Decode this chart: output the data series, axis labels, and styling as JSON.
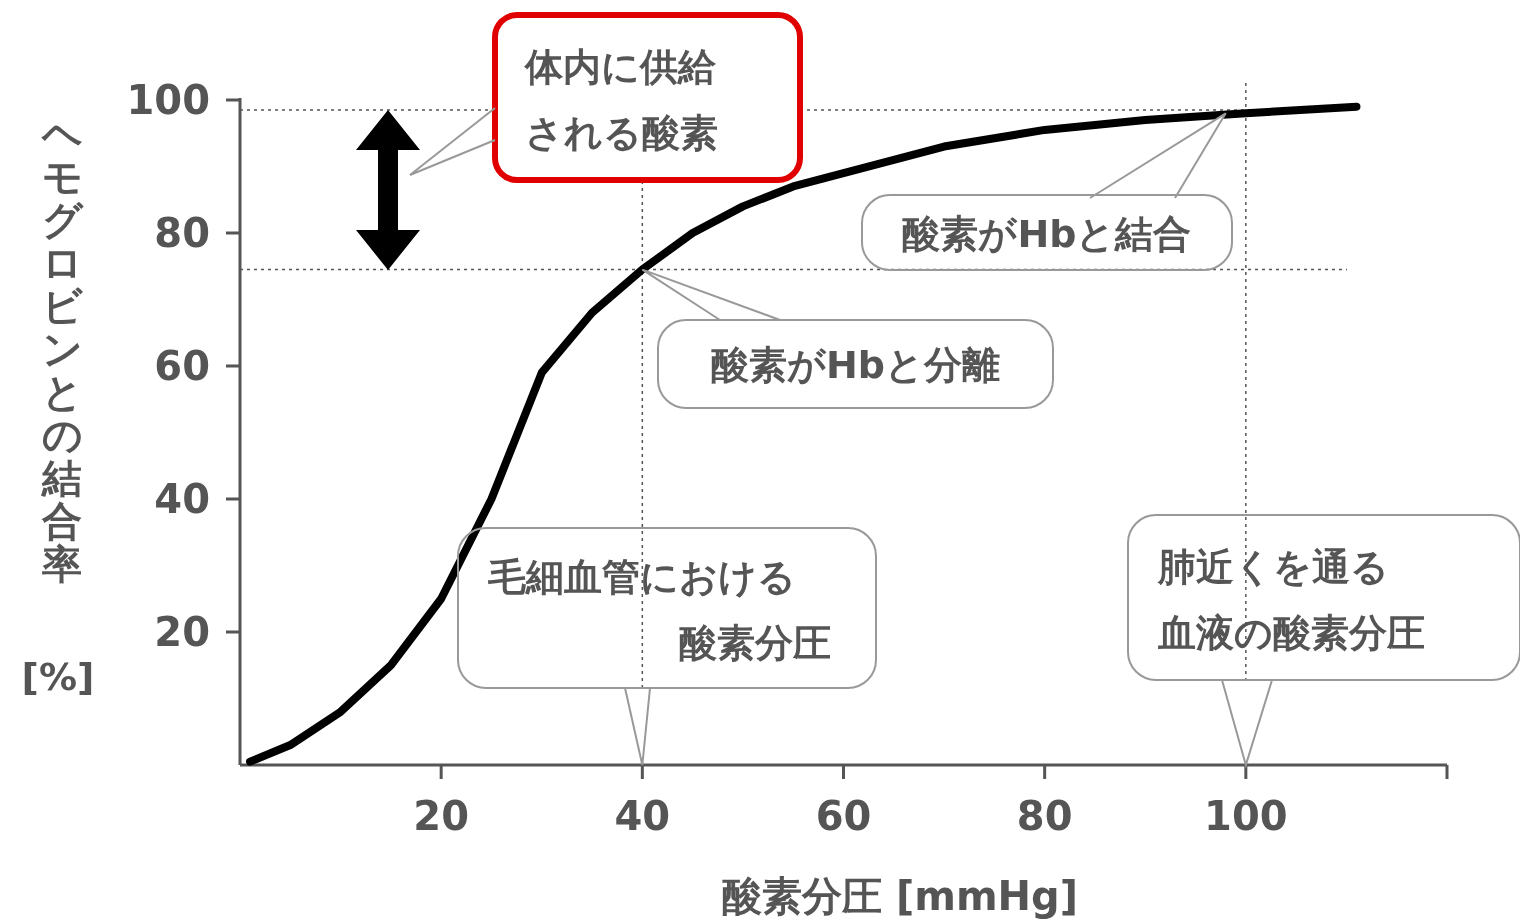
{
  "chart_data": {
    "type": "line",
    "xlabel": "酸素分圧 [mmHg]",
    "ylabel": "ヘモグロビンとの結合率 [%]",
    "x": [
      1,
      5,
      10,
      15,
      20,
      25,
      30,
      35,
      40,
      45,
      50,
      55,
      60,
      70,
      80,
      90,
      100,
      111
    ],
    "series": [
      {
        "color": "#000000",
        "values": [
          0.5,
          3,
          8,
          15,
          25,
          40,
          59,
          68,
          74.5,
          80,
          84,
          87,
          89,
          93,
          95.5,
          97,
          98,
          99
        ]
      }
    ],
    "xlim": [
      0,
      120
    ],
    "ylim": [
      0,
      100
    ],
    "xticks": [
      20,
      40,
      60,
      80,
      100,
      {
        "value": 120,
        "label": null
      }
    ],
    "yticks": [
      20,
      40,
      60,
      80,
      100
    ],
    "ref_lines": [
      {
        "axis": "x",
        "value": 40,
        "color": "#555555",
        "line_style": "dotted"
      },
      {
        "axis": "x",
        "value": 100,
        "color": "#555555",
        "line_style": "dotted"
      },
      {
        "axis": "y",
        "value": 74.5,
        "color": "#555555",
        "line_style": "dotted"
      },
      {
        "axis": "y",
        "value": 98.5,
        "color": "#555555",
        "line_style": "dotted"
      }
    ],
    "annotations": [
      "体内に供給される酸素",
      {
        "text": "酸素がHbと結合",
        "x": 98,
        "y": 98
      },
      {
        "text": "酸素がHbと分離",
        "x": 40,
        "y": 74.5
      },
      {
        "text": "毛細血管における酸素分圧",
        "x": 40,
        "y": 0
      },
      {
        "text": "肺近くを通る血液の酸素分圧",
        "x": 100,
        "y": 0
      }
    ],
    "line_style": "solid"
  }
}
